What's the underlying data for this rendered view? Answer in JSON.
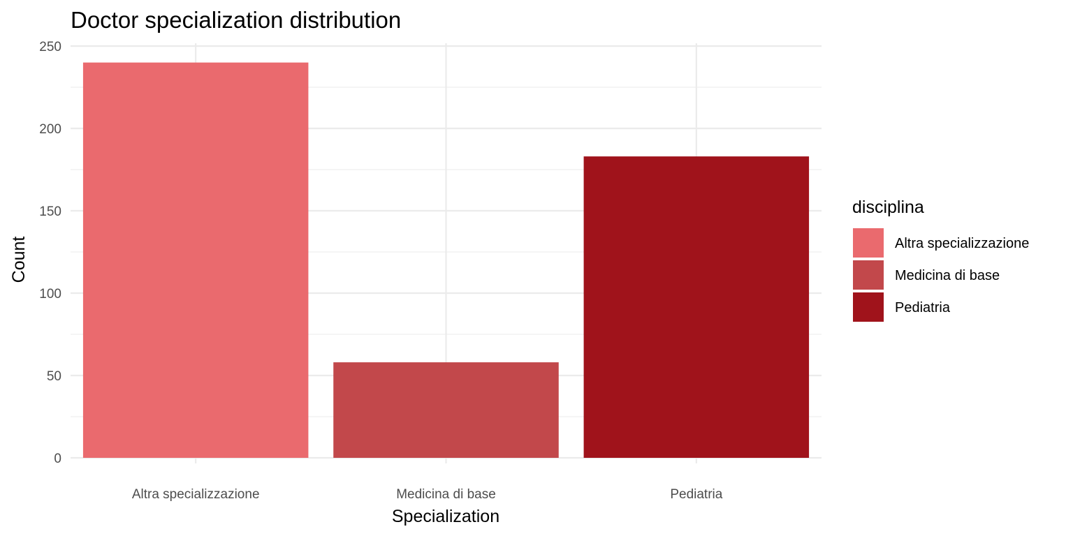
{
  "chart_data": {
    "type": "bar",
    "title": "Doctor specialization distribution",
    "xlabel": "Specialization",
    "ylabel": "Count",
    "categories": [
      "Altra specializzazione",
      "Medicina di base",
      "Pediatria"
    ],
    "values": [
      240,
      58,
      183
    ],
    "colors": [
      "#EA6A6E",
      "#C2484B",
      "#A0131B"
    ],
    "ylim": [
      0,
      250
    ],
    "yticks": [
      0,
      50,
      100,
      150,
      200,
      250
    ],
    "ytick_labels": [
      "0",
      "50",
      "100",
      "150",
      "200",
      "250"
    ],
    "grid": true,
    "legend": {
      "title": "disciplina",
      "placement": "right",
      "entries": [
        "Altra specializzazione",
        "Medicina di base",
        "Pediatria"
      ]
    }
  }
}
